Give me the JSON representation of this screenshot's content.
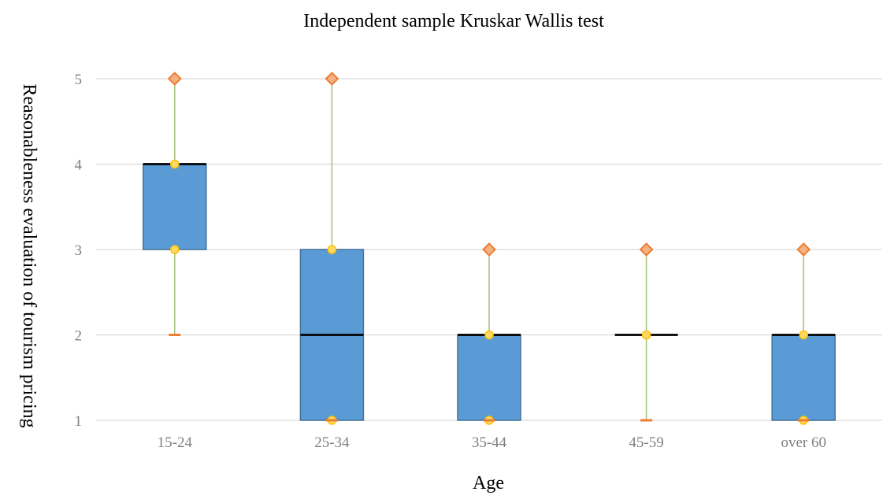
{
  "chart_data": {
    "type": "boxplot",
    "title": "Independent sample Kruskar Wallis test",
    "xlabel": "Age",
    "ylabel": "Reasonableness evaluation of tourism pricing",
    "ylim": [
      1,
      5
    ],
    "yticks": [
      1,
      2,
      3,
      4,
      5
    ],
    "grid": true,
    "legend": "none",
    "categories": [
      "15-24",
      "25-34",
      "35-44",
      "45-59",
      "over 60"
    ],
    "boxes": [
      {
        "category": "15-24",
        "min": 2,
        "q1": 3,
        "median": 4,
        "q3": 4,
        "max": 5
      },
      {
        "category": "25-34",
        "min": 1,
        "q1": 1,
        "median": 2,
        "q3": 3,
        "max": 5
      },
      {
        "category": "35-44",
        "min": 1,
        "q1": 1,
        "median": 2,
        "q3": 2,
        "max": 3
      },
      {
        "category": "45-59",
        "min": 1,
        "q1": 2,
        "median": 2,
        "q3": 2,
        "max": 3
      },
      {
        "category": "over 60",
        "min": 1,
        "q1": 1,
        "median": 2,
        "q3": 2,
        "max": 3
      }
    ],
    "colors": {
      "box_fill": "#5b9bd5",
      "box_stroke": "#41719c",
      "median": "#000000",
      "whisker": "#a9c47f",
      "quartile_marker_fill": "#ffd966",
      "quartile_marker_stroke": "#ffc000",
      "max_marker_fill": "#f4b183",
      "max_marker_stroke": "#ed7d31",
      "min_marker": "#ed7d31",
      "grid": "#d9d9d9",
      "tick_text": "#7f7f7f"
    }
  }
}
